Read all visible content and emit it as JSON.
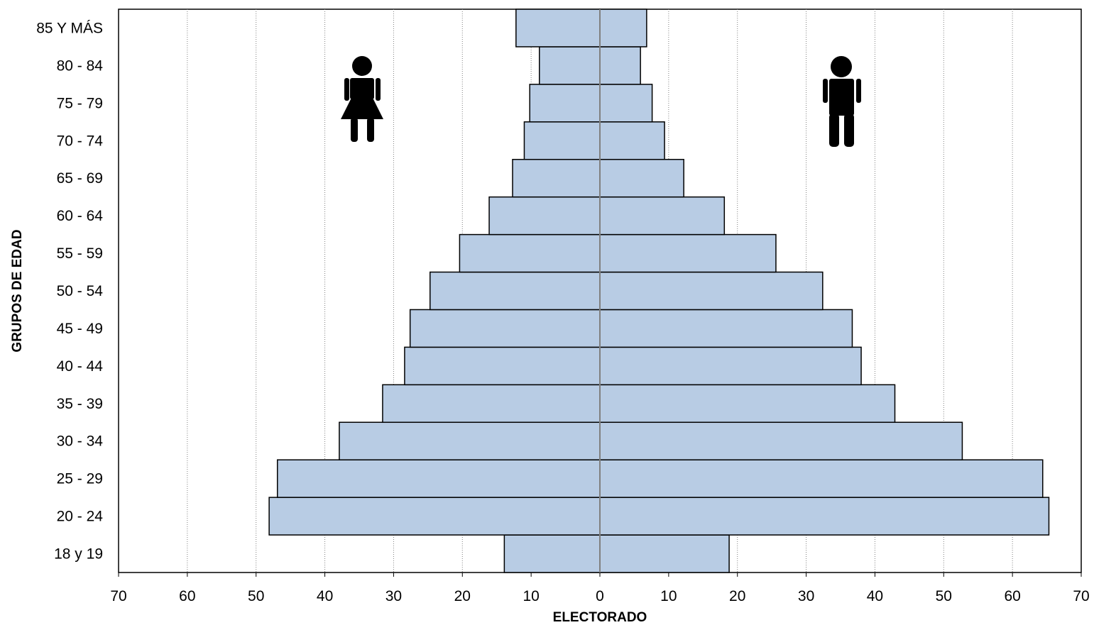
{
  "chart_data": {
    "type": "bar",
    "orientation": "horizontal",
    "subtype": "population-pyramid",
    "title": "",
    "xlabel": "ELECTORADO",
    "ylabel": "GRUPOS DE EDAD",
    "xlim": [
      -70,
      70
    ],
    "x_ticks": [
      -70,
      -60,
      -50,
      -40,
      -30,
      -20,
      -10,
      0,
      10,
      20,
      30,
      40,
      50,
      60,
      70
    ],
    "x_tick_labels": [
      "70",
      "60",
      "50",
      "40",
      "30",
      "20",
      "10",
      "0",
      "10",
      "20",
      "30",
      "40",
      "50",
      "60",
      "70"
    ],
    "grid": "vertical",
    "bar_color": "#b8cce4",
    "categories": [
      "18 y 19",
      "20 - 24",
      "25 - 29",
      "30 - 34",
      "35 - 39",
      "40 - 44",
      "45 - 49",
      "50 - 54",
      "55 - 59",
      "60 - 64",
      "65 - 69",
      "70 - 74",
      "75 - 79",
      "80 - 84",
      "85 Y MÁS"
    ],
    "series": [
      {
        "values": [
          13.9,
          48.1,
          46.9,
          37.9,
          31.6,
          28.4,
          27.6,
          24.7,
          20.4,
          16.1,
          12.7,
          11.0,
          10.2,
          8.8,
          12.2
        ]
      },
      {
        "values": [
          18.8,
          65.3,
          64.4,
          52.7,
          42.9,
          38.0,
          36.7,
          32.4,
          25.6,
          18.1,
          12.2,
          9.4,
          7.6,
          5.9,
          6.8
        ]
      }
    ],
    "icons": [
      "female-figure-icon",
      "male-figure-icon"
    ]
  }
}
